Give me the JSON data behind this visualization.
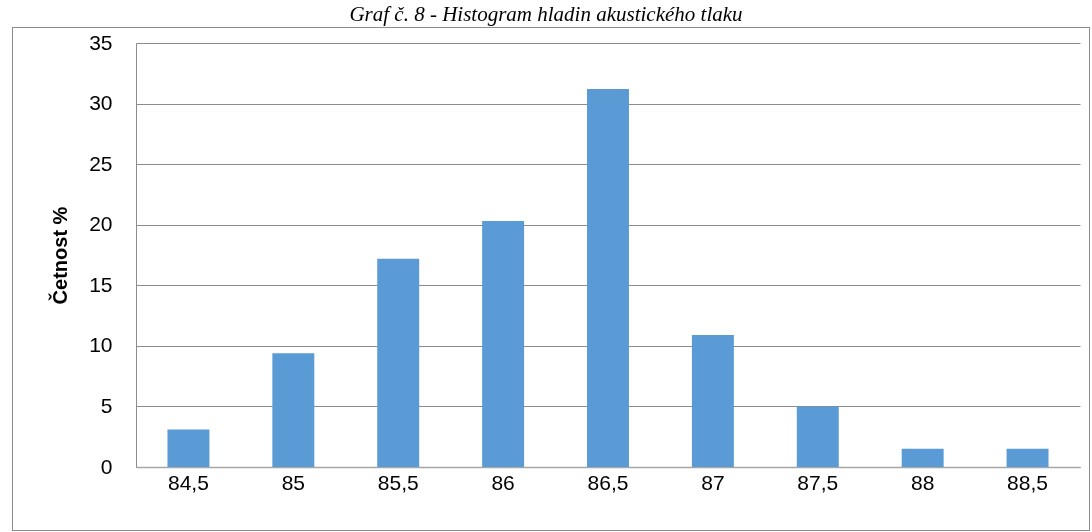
{
  "chart_data": {
    "type": "bar",
    "title": "Graf č. 8 - Histogram hladin akustického tlaku",
    "ylabel": "Četnost %",
    "categories": [
      "84,5",
      "85",
      "85,5",
      "86",
      "86,5",
      "87",
      "87,5",
      "88",
      "88,5"
    ],
    "values": [
      3.1,
      9.4,
      17.2,
      20.3,
      31.2,
      10.9,
      5.0,
      1.5,
      1.5
    ],
    "color": "#5b9bd5",
    "ylim": [
      0,
      35
    ],
    "yticks": [
      0,
      5,
      10,
      15,
      20,
      25,
      30,
      35
    ],
    "grid": "y"
  }
}
